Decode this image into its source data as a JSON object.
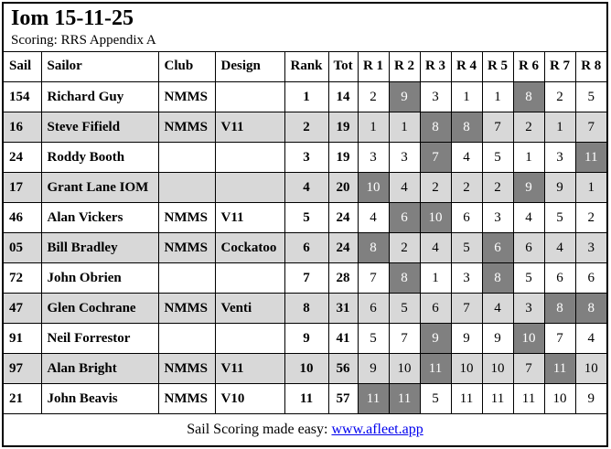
{
  "window": {
    "title": "Iom 15-11-25",
    "subtitle": "Scoring: RRS Appendix A"
  },
  "table": {
    "headers": [
      "Sail",
      "Sailor",
      "Club",
      "Design",
      "Rank",
      "Tot",
      "R 1",
      "R 2",
      "R 3",
      "R 4",
      "R 5",
      "R 6",
      "R 7",
      "R 8"
    ],
    "rows": [
      {
        "sail": "154",
        "sailor": "Richard Guy",
        "club": "NMMS",
        "design": "",
        "rank": "1",
        "tot": "14",
        "shaded": false,
        "races": [
          {
            "v": "2",
            "d": false
          },
          {
            "v": "9",
            "d": true
          },
          {
            "v": "3",
            "d": false
          },
          {
            "v": "1",
            "d": false
          },
          {
            "v": "1",
            "d": false
          },
          {
            "v": "8",
            "d": true
          },
          {
            "v": "2",
            "d": false
          },
          {
            "v": "5",
            "d": false
          }
        ]
      },
      {
        "sail": "16",
        "sailor": "Steve Fifield",
        "club": "NMMS",
        "design": "V11",
        "rank": "2",
        "tot": "19",
        "shaded": true,
        "races": [
          {
            "v": "1",
            "d": false
          },
          {
            "v": "1",
            "d": false
          },
          {
            "v": "8",
            "d": true
          },
          {
            "v": "8",
            "d": true
          },
          {
            "v": "7",
            "d": false
          },
          {
            "v": "2",
            "d": false
          },
          {
            "v": "1",
            "d": false
          },
          {
            "v": "7",
            "d": false
          }
        ]
      },
      {
        "sail": "24",
        "sailor": "Roddy Booth",
        "club": "",
        "design": "",
        "rank": "3",
        "tot": "19",
        "shaded": false,
        "races": [
          {
            "v": "3",
            "d": false
          },
          {
            "v": "3",
            "d": false
          },
          {
            "v": "7",
            "d": true
          },
          {
            "v": "4",
            "d": false
          },
          {
            "v": "5",
            "d": false
          },
          {
            "v": "1",
            "d": false
          },
          {
            "v": "3",
            "d": false
          },
          {
            "v": "11",
            "d": true
          }
        ]
      },
      {
        "sail": "17",
        "sailor": "Grant Lane IOM",
        "club": "",
        "design": "",
        "rank": "4",
        "tot": "20",
        "shaded": true,
        "races": [
          {
            "v": "10",
            "d": true
          },
          {
            "v": "4",
            "d": false
          },
          {
            "v": "2",
            "d": false
          },
          {
            "v": "2",
            "d": false
          },
          {
            "v": "2",
            "d": false
          },
          {
            "v": "9",
            "d": true
          },
          {
            "v": "9",
            "d": false
          },
          {
            "v": "1",
            "d": false
          }
        ]
      },
      {
        "sail": "46",
        "sailor": "Alan Vickers",
        "club": "NMMS",
        "design": "V11",
        "rank": "5",
        "tot": "24",
        "shaded": false,
        "races": [
          {
            "v": "4",
            "d": false
          },
          {
            "v": "6",
            "d": true
          },
          {
            "v": "10",
            "d": true
          },
          {
            "v": "6",
            "d": false
          },
          {
            "v": "3",
            "d": false
          },
          {
            "v": "4",
            "d": false
          },
          {
            "v": "5",
            "d": false
          },
          {
            "v": "2",
            "d": false
          }
        ]
      },
      {
        "sail": "05",
        "sailor": "Bill Bradley",
        "club": "NMMS",
        "design": "Cockatoo",
        "rank": "6",
        "tot": "24",
        "shaded": true,
        "races": [
          {
            "v": "8",
            "d": true
          },
          {
            "v": "2",
            "d": false
          },
          {
            "v": "4",
            "d": false
          },
          {
            "v": "5",
            "d": false
          },
          {
            "v": "6",
            "d": true
          },
          {
            "v": "6",
            "d": false
          },
          {
            "v": "4",
            "d": false
          },
          {
            "v": "3",
            "d": false
          }
        ]
      },
      {
        "sail": "72",
        "sailor": "John Obrien",
        "club": "",
        "design": "",
        "rank": "7",
        "tot": "28",
        "shaded": false,
        "races": [
          {
            "v": "7",
            "d": false
          },
          {
            "v": "8",
            "d": true
          },
          {
            "v": "1",
            "d": false
          },
          {
            "v": "3",
            "d": false
          },
          {
            "v": "8",
            "d": true
          },
          {
            "v": "5",
            "d": false
          },
          {
            "v": "6",
            "d": false
          },
          {
            "v": "6",
            "d": false
          }
        ]
      },
      {
        "sail": "47",
        "sailor": "Glen Cochrane",
        "club": "NMMS",
        "design": "Venti",
        "rank": "8",
        "tot": "31",
        "shaded": true,
        "races": [
          {
            "v": "6",
            "d": false
          },
          {
            "v": "5",
            "d": false
          },
          {
            "v": "6",
            "d": false
          },
          {
            "v": "7",
            "d": false
          },
          {
            "v": "4",
            "d": false
          },
          {
            "v": "3",
            "d": false
          },
          {
            "v": "8",
            "d": true
          },
          {
            "v": "8",
            "d": true
          }
        ]
      },
      {
        "sail": "91",
        "sailor": "Neil Forrestor",
        "club": "",
        "design": "",
        "rank": "9",
        "tot": "41",
        "shaded": false,
        "races": [
          {
            "v": "5",
            "d": false
          },
          {
            "v": "7",
            "d": false
          },
          {
            "v": "9",
            "d": true
          },
          {
            "v": "9",
            "d": false
          },
          {
            "v": "9",
            "d": false
          },
          {
            "v": "10",
            "d": true
          },
          {
            "v": "7",
            "d": false
          },
          {
            "v": "4",
            "d": false
          }
        ]
      },
      {
        "sail": "97",
        "sailor": "Alan Bright",
        "club": "NMMS",
        "design": "V11",
        "rank": "10",
        "tot": "56",
        "shaded": true,
        "races": [
          {
            "v": "9",
            "d": false
          },
          {
            "v": "10",
            "d": false
          },
          {
            "v": "11",
            "d": true
          },
          {
            "v": "10",
            "d": false
          },
          {
            "v": "10",
            "d": false
          },
          {
            "v": "7",
            "d": false
          },
          {
            "v": "11",
            "d": true
          },
          {
            "v": "10",
            "d": false
          }
        ]
      },
      {
        "sail": "21",
        "sailor": "John Beavis",
        "club": "NMMS",
        "design": "V10",
        "rank": "11",
        "tot": "57",
        "shaded": false,
        "races": [
          {
            "v": "11",
            "d": true
          },
          {
            "v": "11",
            "d": true
          },
          {
            "v": "5",
            "d": false
          },
          {
            "v": "11",
            "d": false
          },
          {
            "v": "11",
            "d": false
          },
          {
            "v": "11",
            "d": false
          },
          {
            "v": "10",
            "d": false
          },
          {
            "v": "9",
            "d": false
          }
        ]
      }
    ]
  },
  "footer": {
    "text": "Sail Scoring made easy: ",
    "link": "www.afleet.app"
  },
  "colors": {
    "row_shade": "#d8d8d8",
    "discard_bg": "#808080",
    "discard_text": "#ffffff",
    "link": "#0000ee",
    "border": "#000000"
  }
}
